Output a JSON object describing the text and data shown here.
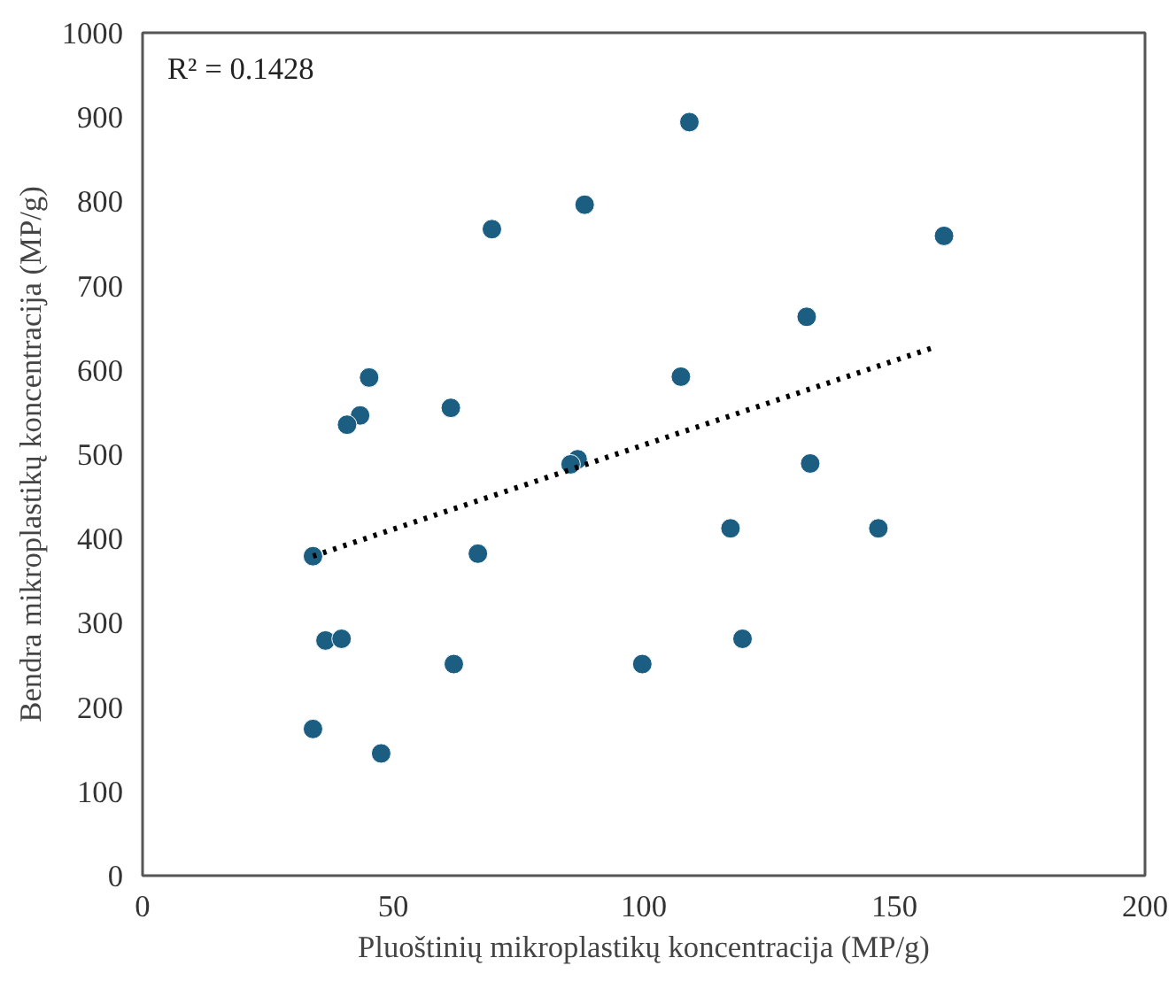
{
  "chart_data": {
    "type": "scatter",
    "xlabel": "Pluoštinių mikroplastikų koncentracija (MP/g)",
    "ylabel": "Bendra mikroplastikų koncentracija (MP/g)",
    "annotations": [
      "R² = 0.1428"
    ],
    "series": [
      {
        "color": "#1b5e82",
        "marker": "circle",
        "x": [
          88.2,
          69.7,
          45.2,
          43.4,
          40.8,
          61.5,
          86.8,
          85.4,
          34.0,
          66.9,
          36.5,
          39.7,
          62.1,
          99.7,
          34.0,
          47.6,
          109.1,
          159.9,
          132.5,
          107.4,
          133.2,
          117.3,
          146.8,
          119.7
        ],
        "values": [
          796,
          767,
          591,
          546,
          535,
          555,
          494,
          488,
          379,
          382,
          279,
          281,
          251,
          251,
          174,
          145,
          894,
          759,
          663,
          592,
          489,
          412,
          412,
          281
        ]
      },
      {
        "type": "line",
        "color": "#000000",
        "line_style": "dotted",
        "marker": "none",
        "x": [
          34.0,
          158.5
        ],
        "values": [
          379,
          628
        ]
      }
    ],
    "xlim": [
      0,
      200
    ],
    "xticks": [
      0,
      50,
      100,
      150,
      200
    ],
    "ylim": [
      0,
      1000
    ],
    "yticks": [
      0,
      100,
      200,
      300,
      400,
      500,
      600,
      700,
      800,
      900,
      1000
    ],
    "grid": false
  }
}
